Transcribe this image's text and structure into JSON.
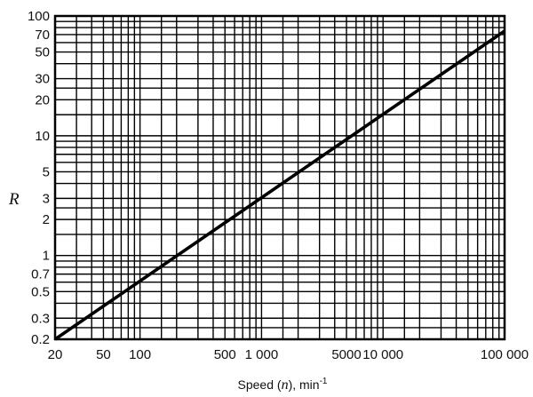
{
  "chart_data": {
    "type": "line",
    "xlabel": {
      "prefix": "Speed (",
      "var": "n",
      "suffix": "), min",
      "sup": "-1"
    },
    "ylabel": "R",
    "x_scale": "log",
    "y_scale": "log",
    "xlim": [
      20,
      100000
    ],
    "ylim": [
      0.2,
      100
    ],
    "grid": true,
    "x_ticks": [
      {
        "value": 20,
        "label": "20"
      },
      {
        "value": 50,
        "label": "50"
      },
      {
        "value": 100,
        "label": "100"
      },
      {
        "value": 500,
        "label": "500"
      },
      {
        "value": 1000,
        "label": "1 000"
      },
      {
        "value": 5000,
        "label": "5000"
      },
      {
        "value": 10000,
        "label": "10 000"
      },
      {
        "value": 100000,
        "label": "100 000"
      }
    ],
    "y_ticks": [
      {
        "value": 0.2,
        "label": "0.2"
      },
      {
        "value": 0.3,
        "label": "0.3"
      },
      {
        "value": 0.5,
        "label": "0.5"
      },
      {
        "value": 0.7,
        "label": "0.7"
      },
      {
        "value": 1,
        "label": "1"
      },
      {
        "value": 2,
        "label": "2"
      },
      {
        "value": 3,
        "label": "3"
      },
      {
        "value": 5,
        "label": "5"
      },
      {
        "value": 10,
        "label": "10"
      },
      {
        "value": 20,
        "label": "20"
      },
      {
        "value": 30,
        "label": "30"
      },
      {
        "value": 50,
        "label": "50"
      },
      {
        "value": 70,
        "label": "70"
      },
      {
        "value": 100,
        "label": "100"
      }
    ],
    "series": [
      {
        "x": [
          20,
          100000
        ],
        "y": [
          0.2,
          75
        ]
      }
    ]
  }
}
